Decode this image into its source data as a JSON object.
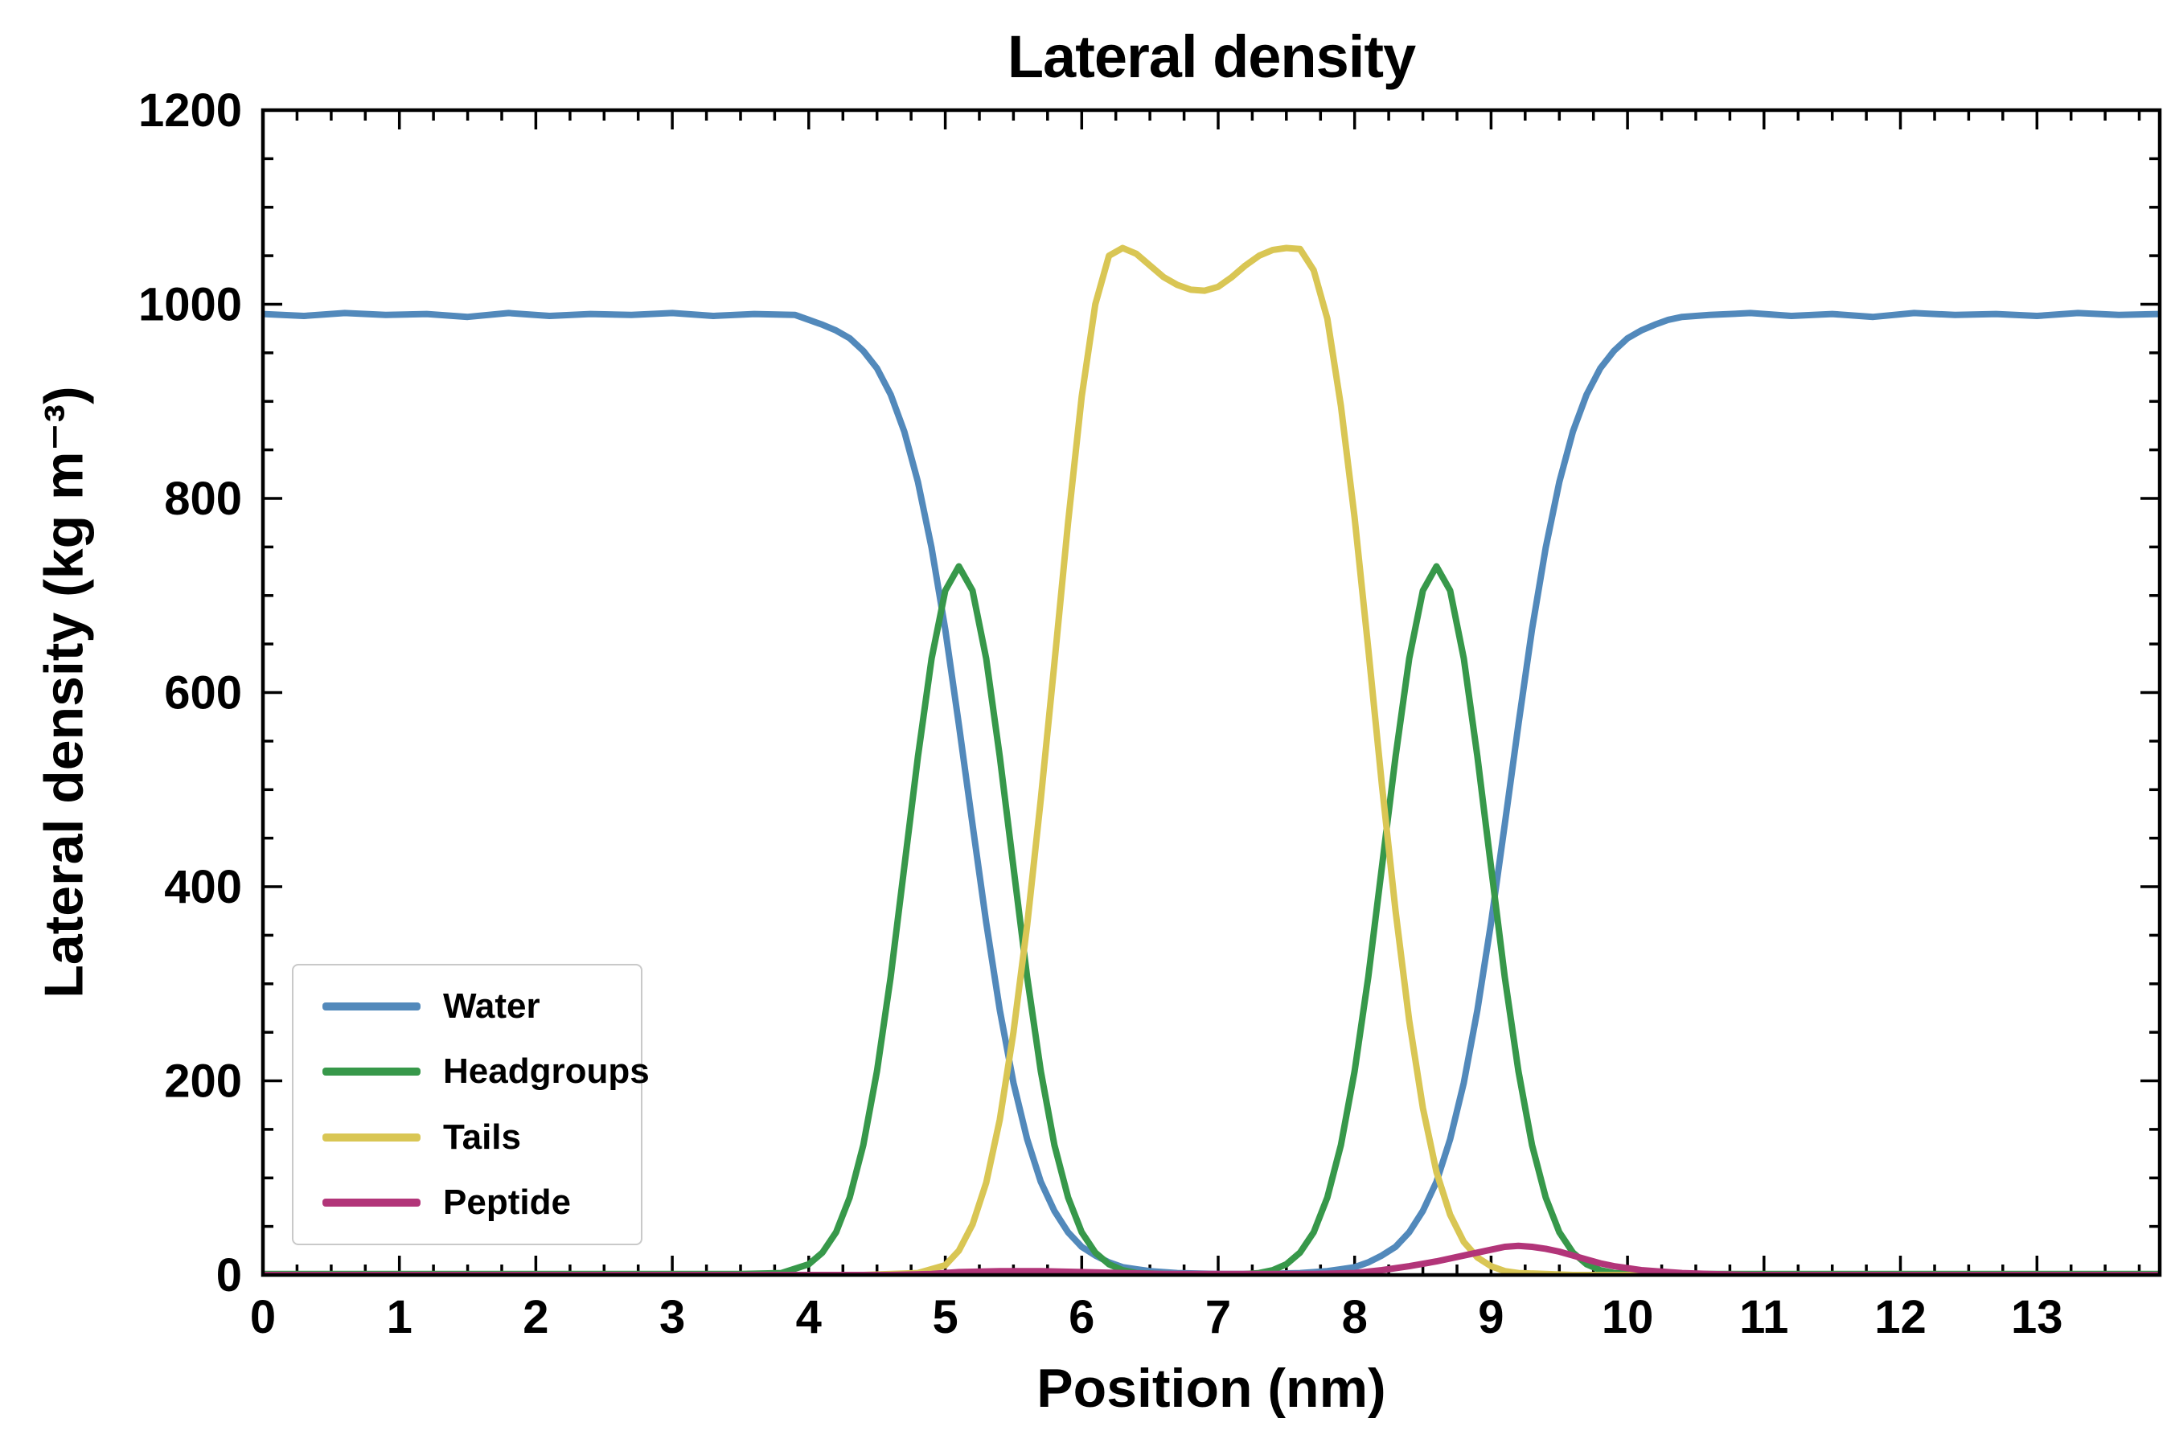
{
  "chart_data": {
    "type": "line",
    "title": "Lateral density",
    "xlabel": "Position (nm)",
    "ylabel": "Lateral density (kg m⁻³)",
    "xlim": [
      0,
      13.9
    ],
    "ylim": [
      0,
      1200
    ],
    "xticks": [
      0,
      1,
      2,
      3,
      4,
      5,
      6,
      7,
      8,
      9,
      10,
      11,
      12,
      13
    ],
    "yticks": [
      0,
      200,
      400,
      600,
      800,
      1000,
      1200
    ],
    "x_minor_step": 0.25,
    "y_minor_step": 50,
    "grid": false,
    "legend_position": "lower left",
    "series": [
      {
        "name": "Water",
        "color": "#5289bb",
        "points": [
          [
            0,
            990
          ],
          [
            0.3,
            988
          ],
          [
            0.6,
            991
          ],
          [
            0.9,
            989
          ],
          [
            1.2,
            990
          ],
          [
            1.5,
            987
          ],
          [
            1.8,
            991
          ],
          [
            2.1,
            988
          ],
          [
            2.4,
            990
          ],
          [
            2.7,
            989
          ],
          [
            3.0,
            991
          ],
          [
            3.3,
            988
          ],
          [
            3.6,
            990
          ],
          [
            3.9,
            989
          ],
          [
            4.0,
            984
          ],
          [
            4.1,
            979
          ],
          [
            4.2,
            973
          ],
          [
            4.3,
            965
          ],
          [
            4.4,
            952
          ],
          [
            4.5,
            934
          ],
          [
            4.6,
            907
          ],
          [
            4.7,
            869
          ],
          [
            4.8,
            817
          ],
          [
            4.9,
            749
          ],
          [
            5.0,
            665
          ],
          [
            5.1,
            567
          ],
          [
            5.2,
            464
          ],
          [
            5.3,
            363
          ],
          [
            5.4,
            273
          ],
          [
            5.5,
            198
          ],
          [
            5.6,
            140
          ],
          [
            5.7,
            96
          ],
          [
            5.8,
            66
          ],
          [
            5.9,
            44
          ],
          [
            6.0,
            29
          ],
          [
            6.1,
            20
          ],
          [
            6.2,
            13
          ],
          [
            6.3,
            8
          ],
          [
            6.4,
            6
          ],
          [
            6.5,
            4
          ],
          [
            6.7,
            2
          ],
          [
            7.0,
            1
          ],
          [
            7.3,
            1
          ],
          [
            7.6,
            2
          ],
          [
            7.8,
            4
          ],
          [
            7.9,
            6
          ],
          [
            8.0,
            8
          ],
          [
            8.1,
            13
          ],
          [
            8.2,
            20
          ],
          [
            8.3,
            29
          ],
          [
            8.4,
            44
          ],
          [
            8.5,
            66
          ],
          [
            8.6,
            96
          ],
          [
            8.7,
            140
          ],
          [
            8.8,
            198
          ],
          [
            8.9,
            273
          ],
          [
            9.0,
            363
          ],
          [
            9.1,
            464
          ],
          [
            9.2,
            567
          ],
          [
            9.3,
            665
          ],
          [
            9.4,
            749
          ],
          [
            9.5,
            817
          ],
          [
            9.6,
            869
          ],
          [
            9.7,
            907
          ],
          [
            9.8,
            934
          ],
          [
            9.9,
            952
          ],
          [
            10.0,
            965
          ],
          [
            10.1,
            973
          ],
          [
            10.2,
            979
          ],
          [
            10.3,
            984
          ],
          [
            10.4,
            987
          ],
          [
            10.6,
            989
          ],
          [
            10.9,
            991
          ],
          [
            11.2,
            988
          ],
          [
            11.5,
            990
          ],
          [
            11.8,
            987
          ],
          [
            12.1,
            991
          ],
          [
            12.4,
            989
          ],
          [
            12.7,
            990
          ],
          [
            13.0,
            988
          ],
          [
            13.3,
            991
          ],
          [
            13.6,
            989
          ],
          [
            13.9,
            990
          ]
        ]
      },
      {
        "name": "Headgroups",
        "color": "#37984a",
        "points": [
          [
            0,
            1
          ],
          [
            0.5,
            1
          ],
          [
            1.0,
            1
          ],
          [
            1.5,
            1
          ],
          [
            2.0,
            1
          ],
          [
            2.5,
            1
          ],
          [
            3.0,
            1
          ],
          [
            3.5,
            1
          ],
          [
            3.8,
            2
          ],
          [
            4.0,
            11
          ],
          [
            4.1,
            23
          ],
          [
            4.2,
            44
          ],
          [
            4.3,
            80
          ],
          [
            4.4,
            134
          ],
          [
            4.5,
            210
          ],
          [
            4.6,
            307
          ],
          [
            4.7,
            420
          ],
          [
            4.8,
            534
          ],
          [
            4.9,
            635
          ],
          [
            5.0,
            705
          ],
          [
            5.1,
            730
          ],
          [
            5.2,
            705
          ],
          [
            5.3,
            635
          ],
          [
            5.4,
            534
          ],
          [
            5.5,
            420
          ],
          [
            5.6,
            307
          ],
          [
            5.7,
            210
          ],
          [
            5.8,
            134
          ],
          [
            5.9,
            80
          ],
          [
            6.0,
            44
          ],
          [
            6.1,
            23
          ],
          [
            6.2,
            11
          ],
          [
            6.3,
            5
          ],
          [
            6.4,
            2
          ],
          [
            6.6,
            1
          ],
          [
            6.9,
            0
          ],
          [
            7.1,
            0
          ],
          [
            7.3,
            2
          ],
          [
            7.4,
            5
          ],
          [
            7.5,
            11
          ],
          [
            7.6,
            23
          ],
          [
            7.7,
            44
          ],
          [
            7.8,
            80
          ],
          [
            7.9,
            134
          ],
          [
            8.0,
            210
          ],
          [
            8.1,
            307
          ],
          [
            8.2,
            420
          ],
          [
            8.3,
            534
          ],
          [
            8.4,
            635
          ],
          [
            8.5,
            705
          ],
          [
            8.6,
            730
          ],
          [
            8.7,
            705
          ],
          [
            8.8,
            635
          ],
          [
            8.9,
            534
          ],
          [
            9.0,
            420
          ],
          [
            9.1,
            307
          ],
          [
            9.2,
            210
          ],
          [
            9.3,
            134
          ],
          [
            9.4,
            80
          ],
          [
            9.5,
            44
          ],
          [
            9.6,
            23
          ],
          [
            9.7,
            11
          ],
          [
            9.8,
            5
          ],
          [
            9.9,
            2
          ],
          [
            10.1,
            1
          ],
          [
            10.5,
            1
          ],
          [
            11.0,
            1
          ],
          [
            12.0,
            1
          ],
          [
            13.0,
            1
          ],
          [
            13.9,
            1
          ]
        ]
      },
      {
        "name": "Tails",
        "color": "#d9c654",
        "points": [
          [
            0,
            0
          ],
          [
            1.0,
            0
          ],
          [
            2.0,
            0
          ],
          [
            3.0,
            0
          ],
          [
            4.0,
            0
          ],
          [
            4.4,
            0
          ],
          [
            4.6,
            1
          ],
          [
            4.8,
            2
          ],
          [
            5.0,
            10
          ],
          [
            5.1,
            25
          ],
          [
            5.2,
            52
          ],
          [
            5.3,
            95
          ],
          [
            5.4,
            160
          ],
          [
            5.5,
            250
          ],
          [
            5.6,
            360
          ],
          [
            5.7,
            490
          ],
          [
            5.8,
            630
          ],
          [
            5.9,
            775
          ],
          [
            6.0,
            905
          ],
          [
            6.1,
            1000
          ],
          [
            6.2,
            1050
          ],
          [
            6.3,
            1058
          ],
          [
            6.4,
            1052
          ],
          [
            6.5,
            1040
          ],
          [
            6.6,
            1028
          ],
          [
            6.7,
            1020
          ],
          [
            6.8,
            1015
          ],
          [
            6.9,
            1014
          ],
          [
            7.0,
            1018
          ],
          [
            7.1,
            1028
          ],
          [
            7.2,
            1040
          ],
          [
            7.3,
            1050
          ],
          [
            7.4,
            1056
          ],
          [
            7.5,
            1058
          ],
          [
            7.6,
            1057
          ],
          [
            7.7,
            1035
          ],
          [
            7.8,
            985
          ],
          [
            7.9,
            895
          ],
          [
            8.0,
            780
          ],
          [
            8.1,
            645
          ],
          [
            8.2,
            505
          ],
          [
            8.3,
            375
          ],
          [
            8.4,
            262
          ],
          [
            8.5,
            172
          ],
          [
            8.6,
            106
          ],
          [
            8.7,
            62
          ],
          [
            8.8,
            34
          ],
          [
            8.9,
            18
          ],
          [
            9.0,
            9
          ],
          [
            9.1,
            4
          ],
          [
            9.2,
            2
          ],
          [
            9.4,
            1
          ],
          [
            9.6,
            0
          ],
          [
            10.0,
            0
          ],
          [
            11.0,
            0
          ],
          [
            12.0,
            0
          ],
          [
            13.0,
            0
          ],
          [
            13.9,
            0
          ]
        ]
      },
      {
        "name": "Peptide",
        "color": "#b23579",
        "points": [
          [
            0,
            0
          ],
          [
            1.0,
            0
          ],
          [
            2.0,
            0
          ],
          [
            3.0,
            0
          ],
          [
            4.0,
            0
          ],
          [
            4.6,
            0
          ],
          [
            4.9,
            1
          ],
          [
            5.1,
            3
          ],
          [
            5.4,
            4
          ],
          [
            5.7,
            4
          ],
          [
            6.0,
            3
          ],
          [
            6.3,
            2
          ],
          [
            6.6,
            1
          ],
          [
            7.0,
            1
          ],
          [
            7.4,
            1
          ],
          [
            7.7,
            1
          ],
          [
            8.0,
            2
          ],
          [
            8.2,
            5
          ],
          [
            8.4,
            9
          ],
          [
            8.6,
            14
          ],
          [
            8.8,
            20
          ],
          [
            9.0,
            26
          ],
          [
            9.1,
            29
          ],
          [
            9.2,
            30
          ],
          [
            9.3,
            29
          ],
          [
            9.4,
            27
          ],
          [
            9.5,
            24
          ],
          [
            9.6,
            20
          ],
          [
            9.7,
            16
          ],
          [
            9.8,
            12
          ],
          [
            9.9,
            9
          ],
          [
            10.0,
            7
          ],
          [
            10.1,
            5
          ],
          [
            10.2,
            4
          ],
          [
            10.4,
            2
          ],
          [
            10.6,
            1
          ],
          [
            10.9,
            0
          ],
          [
            11.5,
            0
          ],
          [
            12.5,
            0
          ],
          [
            13.9,
            0
          ]
        ]
      }
    ]
  }
}
